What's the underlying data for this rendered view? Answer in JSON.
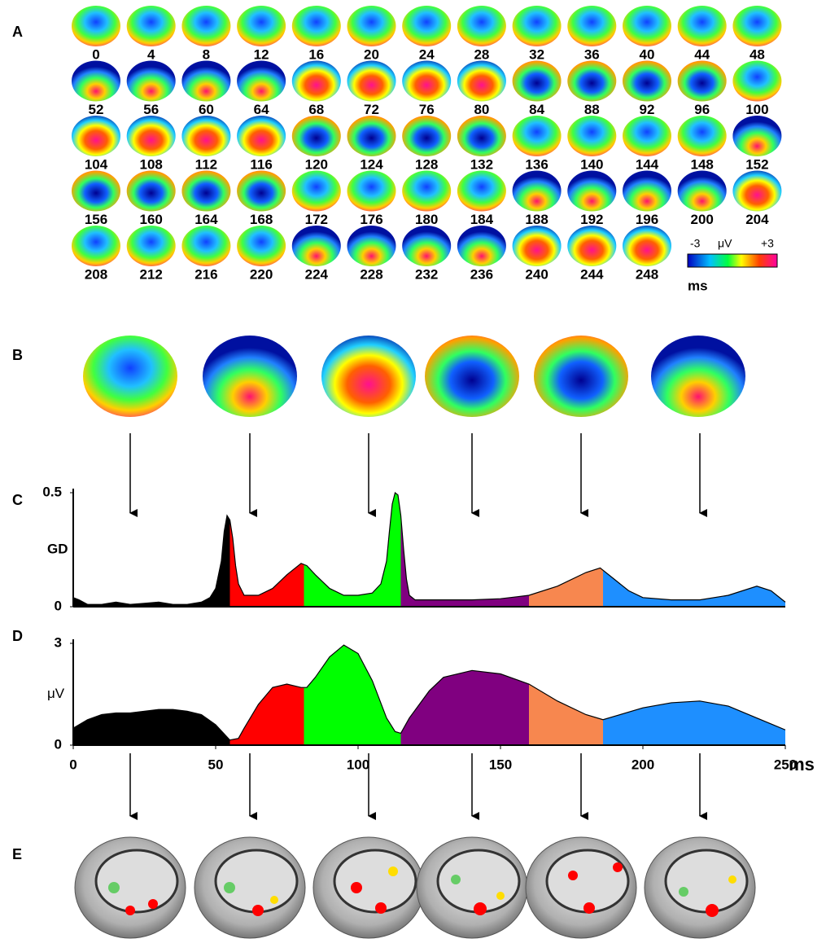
{
  "panels": [
    "A",
    "B",
    "C",
    "D",
    "E"
  ],
  "maps": {
    "times": [
      0,
      4,
      8,
      12,
      16,
      20,
      24,
      28,
      32,
      36,
      40,
      44,
      48,
      52,
      56,
      60,
      64,
      68,
      72,
      76,
      80,
      84,
      88,
      92,
      96,
      100,
      104,
      108,
      112,
      116,
      120,
      124,
      128,
      132,
      136,
      140,
      144,
      148,
      152,
      156,
      160,
      164,
      168,
      172,
      176,
      180,
      184,
      188,
      192,
      196,
      200,
      204,
      208,
      212,
      216,
      220,
      224,
      228,
      232,
      236,
      240,
      244,
      248
    ],
    "unit": "ms"
  },
  "colorbar": {
    "min": "-3",
    "unit": "μV",
    "max": "+3"
  },
  "chart_data": [
    {
      "type": "area",
      "ylabel": "GD",
      "xlim": [
        0,
        250
      ],
      "ylim": [
        0,
        0.5
      ],
      "yticks": [
        0,
        0.5
      ],
      "x": [
        0,
        2,
        5,
        10,
        15,
        20,
        25,
        30,
        35,
        40,
        45,
        48,
        50,
        52,
        53,
        54,
        55,
        56,
        57,
        58,
        60,
        65,
        70,
        75,
        80,
        82,
        85,
        90,
        95,
        100,
        105,
        108,
        110,
        111,
        112,
        113,
        114,
        115,
        116,
        117,
        118,
        120,
        130,
        140,
        150,
        160,
        170,
        180,
        185,
        190,
        195,
        200,
        210,
        220,
        230,
        240,
        245,
        250
      ],
      "values": [
        0.04,
        0.03,
        0.01,
        0.01,
        0.02,
        0.01,
        0.015,
        0.02,
        0.01,
        0.01,
        0.02,
        0.04,
        0.08,
        0.2,
        0.33,
        0.4,
        0.38,
        0.3,
        0.18,
        0.1,
        0.05,
        0.05,
        0.08,
        0.14,
        0.19,
        0.18,
        0.14,
        0.08,
        0.05,
        0.05,
        0.06,
        0.1,
        0.2,
        0.33,
        0.45,
        0.5,
        0.49,
        0.4,
        0.25,
        0.12,
        0.05,
        0.03,
        0.03,
        0.03,
        0.035,
        0.05,
        0.09,
        0.15,
        0.17,
        0.12,
        0.07,
        0.04,
        0.03,
        0.03,
        0.05,
        0.09,
        0.07,
        0.02
      ],
      "segments": [
        {
          "color": "#000000",
          "start": 0,
          "end": 55
        },
        {
          "color": "#ff0000",
          "start": 55,
          "end": 81
        },
        {
          "color": "#00ff00",
          "start": 81,
          "end": 115
        },
        {
          "color": "#800080",
          "start": 115,
          "end": 160
        },
        {
          "color": "#f7874f",
          "start": 160,
          "end": 186
        },
        {
          "color": "#1e8fff",
          "start": 186,
          "end": 250
        }
      ]
    },
    {
      "type": "area",
      "ylabel": "μV",
      "xlabel": "ms",
      "xlim": [
        0,
        250
      ],
      "ylim": [
        0,
        3
      ],
      "yticks": [
        0,
        3
      ],
      "xticks": [
        0,
        50,
        100,
        150,
        200,
        250
      ],
      "x": [
        0,
        5,
        10,
        15,
        20,
        25,
        30,
        35,
        40,
        45,
        50,
        55,
        58,
        60,
        65,
        70,
        75,
        80,
        82,
        85,
        90,
        95,
        100,
        105,
        110,
        113,
        115,
        118,
        125,
        130,
        140,
        150,
        160,
        170,
        180,
        186,
        190,
        200,
        210,
        220,
        230,
        240,
        250
      ],
      "values": [
        0.5,
        0.75,
        0.9,
        0.95,
        0.95,
        1.0,
        1.05,
        1.05,
        1.0,
        0.9,
        0.6,
        0.15,
        0.2,
        0.5,
        1.2,
        1.7,
        1.8,
        1.7,
        1.7,
        2.0,
        2.6,
        2.95,
        2.7,
        1.9,
        0.8,
        0.4,
        0.35,
        0.8,
        1.6,
        2.0,
        2.2,
        2.1,
        1.8,
        1.3,
        0.9,
        0.75,
        0.85,
        1.1,
        1.25,
        1.3,
        1.15,
        0.8,
        0.45
      ],
      "segments": [
        {
          "color": "#000000",
          "start": 0,
          "end": 55
        },
        {
          "color": "#ff0000",
          "start": 55,
          "end": 81
        },
        {
          "color": "#00ff00",
          "start": 81,
          "end": 115
        },
        {
          "color": "#800080",
          "start": 115,
          "end": 160
        },
        {
          "color": "#f7874f",
          "start": 160,
          "end": 186
        },
        {
          "color": "#1e8fff",
          "start": 186,
          "end": 250
        }
      ]
    }
  ]
}
